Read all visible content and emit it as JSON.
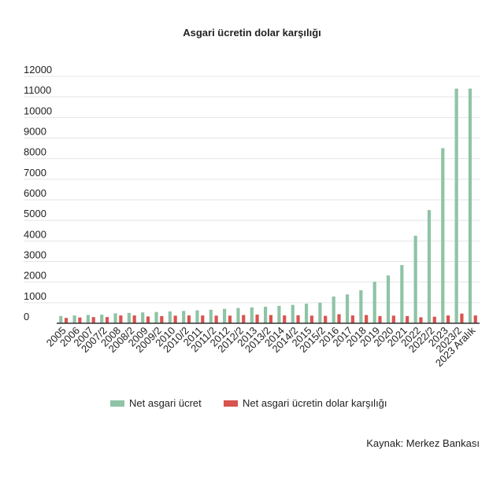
{
  "chart_data": {
    "type": "bar",
    "title": "Asgari ücretin dolar karşılığı",
    "xlabel": "",
    "ylabel": "",
    "ylim": [
      0,
      12000
    ],
    "yticks": [
      0,
      1000,
      2000,
      3000,
      4000,
      5000,
      6000,
      7000,
      8000,
      9000,
      10000,
      11000,
      12000
    ],
    "grid": true,
    "legend_position": "bottom",
    "categories": [
      "2005",
      "2006",
      "2007",
      "2007/2",
      "2008",
      "2008/2",
      "2009",
      "2009/2",
      "2010",
      "2010/2",
      "2011",
      "2011/2",
      "2012",
      "2012/2",
      "2013",
      "2013/2",
      "2014",
      "2014/2",
      "2015",
      "2015/2",
      "2016",
      "2017",
      "2018",
      "2019",
      "2020",
      "2021",
      "2022",
      "2022/2",
      "2023",
      "2023/2",
      "2023 Aralık"
    ],
    "series": [
      {
        "name": "Net asgari ücret",
        "color": "#8ec4a6",
        "values": [
          350,
          380,
          403,
          420,
          482,
          503,
          527,
          547,
          577,
          600,
          629,
          659,
          701,
          740,
          773,
          804,
          846,
          891,
          949,
          1000,
          1300,
          1404,
          1603,
          2020,
          2324,
          2826,
          4253,
          5500,
          8507,
          11402,
          11402
        ]
      },
      {
        "name": "Net asgari ücretin dolar karşılığı",
        "color": "#d9534f",
        "values": [
          260,
          280,
          300,
          300,
          380,
          380,
          330,
          350,
          370,
          380,
          380,
          370,
          370,
          400,
          420,
          400,
          380,
          390,
          370,
          360,
          440,
          380,
          400,
          350,
          370,
          350,
          290,
          320,
          380,
          470,
          380
        ]
      }
    ],
    "source": "Kaynak: Merkez Bankası"
  }
}
